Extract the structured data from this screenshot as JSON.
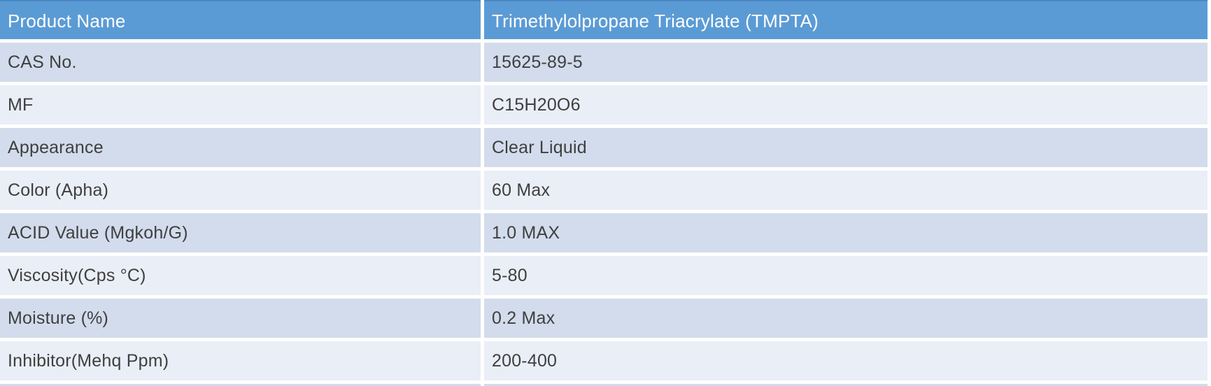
{
  "table": {
    "header": {
      "label": "Product Name",
      "value": "Trimethylolpropane Triacrylate (TMPTA)"
    },
    "rows": [
      {
        "label": "CAS No.",
        "value": "15625-89-5"
      },
      {
        "label": "MF",
        "value": "C15H20O6"
      },
      {
        "label": "Appearance",
        "value": "Clear Liquid"
      },
      {
        "label": "Color (Apha)",
        "value": "60 Max"
      },
      {
        "label": "ACID Value (Mgkoh/G)",
        "value": "1.0 MAX"
      },
      {
        "label": "Viscosity(Cps °C)",
        "value": "5-80"
      },
      {
        "label": "Moisture (%)",
        "value": "0.2 Max"
      },
      {
        "label": "Inhibitor(Mehq Ppm)",
        "value": "200-400"
      }
    ],
    "colors": {
      "header_bg": "#5b9bd5",
      "header_top_border": "#4a86c2",
      "header_text": "#ffffff",
      "band_dark": "#d2dcec",
      "band_light": "#eaeef6",
      "separator": "#ffffff",
      "text": "#3f3f3f"
    }
  }
}
